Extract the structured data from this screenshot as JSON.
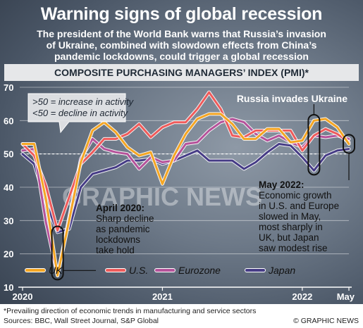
{
  "header": {
    "title": "Warning signs of global recession",
    "subtitle_lines": [
      "The president of the World Bank warns that Russia’s invasion",
      "of Ukraine, combined with slowdown effects from China’s",
      "pandemic lockdowns, could trigger a global recession"
    ]
  },
  "footer": {
    "footnote": "*Prevailing direction of economic trends in manufacturing and service sectors",
    "sources": "Sources: BBC, Wall Street Journal, S&P Global",
    "credit": "© GRAPHIC NEWS"
  },
  "watermark": "GRAPHIC NEWS",
  "colors": {
    "UK": "#f5a623",
    "U.S.": "#ef5b5b",
    "Eurozone": "#b5529a",
    "Japan": "#463c86"
  },
  "chart_data": {
    "type": "line",
    "title": "COMPOSITE PURCHASING MANAGERS’ INDEX (PMI)*",
    "ylim": [
      10,
      70
    ],
    "yticks": [
      10,
      20,
      30,
      40,
      50,
      60,
      70
    ],
    "reference_line": 50,
    "x_tick_labels": [
      {
        "label": "2020",
        "month": 0
      },
      {
        "label": "2021",
        "month": 12
      },
      {
        "label": "2022",
        "month": 24
      },
      {
        "label": "May",
        "month": 28
      }
    ],
    "months": [
      0,
      1,
      2,
      3,
      4,
      5,
      6,
      7,
      8,
      9,
      10,
      11,
      12,
      13,
      14,
      15,
      16,
      17,
      18,
      19,
      20,
      21,
      22,
      23,
      24,
      25,
      26,
      27,
      28
    ],
    "series": [
      {
        "name": "UK",
        "values": [
          53,
          53,
          36.5,
          13.5,
          30,
          47.5,
          57,
          59.5,
          56.5,
          52,
          49.5,
          50.5,
          41,
          49.5,
          56,
          60.5,
          62,
          62,
          59,
          54.5,
          54.5,
          57.5,
          57.5,
          53.5,
          54,
          60,
          60.5,
          58,
          53
        ]
      },
      {
        "name": "U.S.",
        "values": [
          53,
          49.5,
          40.5,
          27,
          37,
          47,
          50.5,
          54.5,
          54.5,
          56,
          59,
          55,
          58,
          59.5,
          59.5,
          63.5,
          68.5,
          63.5,
          55.5,
          55,
          57,
          57,
          57,
          57,
          51,
          55.5,
          57.5,
          56,
          53.5
        ]
      },
      {
        "name": "Eurozone",
        "values": [
          51,
          51.5,
          29.5,
          13.5,
          31,
          48.5,
          54.5,
          51.5,
          50.5,
          50,
          45.5,
          49,
          47.5,
          48,
          53,
          53.5,
          57,
          59.5,
          60.5,
          59.5,
          56,
          54,
          55.5,
          53.5,
          52,
          55.5,
          55,
          55.5,
          54.5
        ]
      },
      {
        "name": "Japan",
        "values": [
          50,
          47,
          35.5,
          26.5,
          27.5,
          40,
          44,
          45,
          46,
          48,
          48,
          48.5,
          47,
          48,
          49.5,
          51,
          48,
          48,
          48,
          45.5,
          47.5,
          50.5,
          53,
          52.5,
          49,
          45,
          49.5,
          51,
          51.5
        ]
      }
    ],
    "annotations": {
      "threshold_lines": [
        ">50 = increase in activity",
        "<50 = decline in activity"
      ],
      "russia": "Russia invades Ukraine",
      "april_2020": [
        "April 2020:",
        "Sharp decline",
        "as pandemic",
        "lockdowns",
        "take hold"
      ],
      "may_2022": [
        "May 2022:",
        "Economic growth",
        "in U.S. and Europe",
        "slowed in May,",
        "most sharply in",
        "UK, but Japan",
        "saw modest rise"
      ]
    },
    "legend": [
      {
        "label": "UK"
      },
      {
        "label": "U.S."
      },
      {
        "label": "Eurozone"
      },
      {
        "label": "Japan"
      }
    ]
  }
}
